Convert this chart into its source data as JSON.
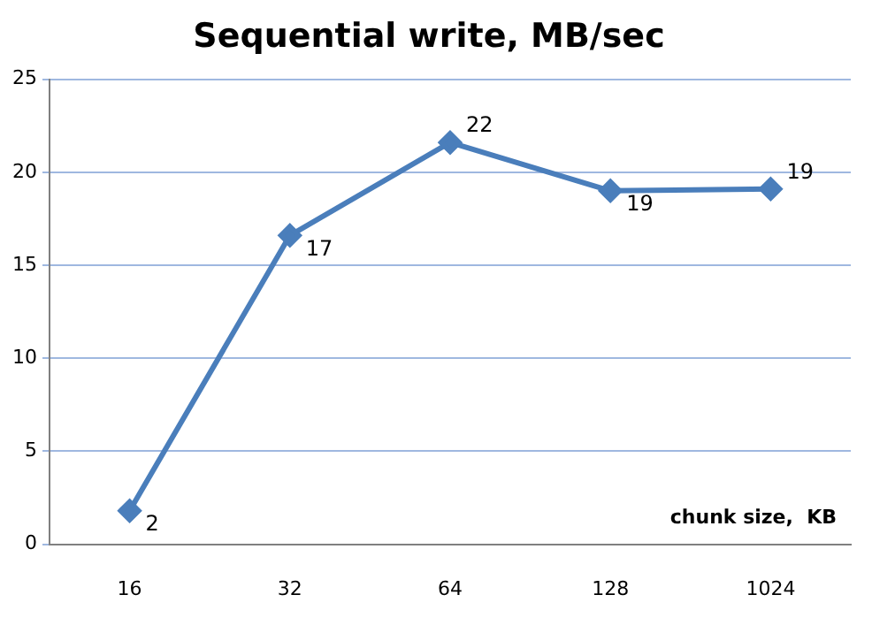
{
  "chart_data": {
    "type": "line",
    "title": "Sequential write, MB/sec",
    "xlabel": "chunk size,  KB",
    "categories": [
      "16",
      "32",
      "64",
      "128",
      "1024"
    ],
    "series": [
      {
        "color": "#4a7ebb",
        "values": [
          1.8,
          16.6,
          21.6,
          19.0,
          19.1
        ],
        "value_labels": [
          "2",
          "17",
          "22",
          "19",
          "19"
        ]
      }
    ],
    "ylim": [
      0,
      25
    ],
    "yticks": [
      0,
      5,
      10,
      15,
      20,
      25
    ],
    "grid": "y",
    "legend": false,
    "marker": "diamond",
    "line_style": "solid"
  }
}
